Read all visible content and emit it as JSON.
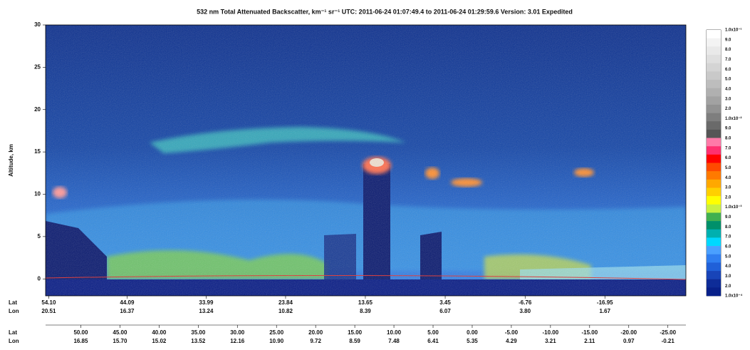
{
  "chart_data": {
    "type": "heatmap",
    "title": "532 nm Total Attenuated Backscatter, km⁻¹ sr⁻¹   UTC:  2011-06-24 01:07:49.4  to  2011-06-24 01:29:59.6   Version: 3.01  Expedited",
    "y_label": "Altitude, km",
    "ylim": [
      -2,
      30
    ],
    "yticks": [
      0,
      5,
      10,
      15,
      20,
      25,
      30
    ],
    "xlim": [
      54.5,
      -27.3
    ],
    "lat_label": "Lat",
    "lon_label": "Lon",
    "xticks": [
      {
        "value": 54.1,
        "label": "54.10"
      },
      {
        "value": 44.09,
        "label": "44.09"
      },
      {
        "value": 33.99,
        "label": "33.99"
      },
      {
        "value": 23.84,
        "label": "23.84"
      },
      {
        "value": 13.65,
        "label": "13.65"
      },
      {
        "value": 3.45,
        "label": "3.45"
      },
      {
        "value": -6.76,
        "label": "-6.76"
      },
      {
        "value": -16.95,
        "label": "-16.95"
      }
    ],
    "lon_labels": [
      "20.51",
      "16.37",
      "13.24",
      "10.82",
      "8.39",
      "6.07",
      "3.80",
      "1.67"
    ],
    "xticks2": [
      {
        "value": 50,
        "label": "50.00"
      },
      {
        "value": 45,
        "label": "45.00"
      },
      {
        "value": 40,
        "label": "40.00"
      },
      {
        "value": 35,
        "label": "35.00"
      },
      {
        "value": 30,
        "label": "30.00"
      },
      {
        "value": 25,
        "label": "25.00"
      },
      {
        "value": 20,
        "label": "20.00"
      },
      {
        "value": 15,
        "label": "15.00"
      },
      {
        "value": 10,
        "label": "10.00"
      },
      {
        "value": 5,
        "label": "5.00"
      },
      {
        "value": 0,
        "label": "0.00"
      },
      {
        "value": -5,
        "label": "-5.00"
      },
      {
        "value": -10,
        "label": "-10.00"
      },
      {
        "value": -15,
        "label": "-15.00"
      },
      {
        "value": -20,
        "label": "-20.00"
      },
      {
        "value": -25,
        "label": "-25.00"
      }
    ],
    "lon_labels2": [
      "16.85",
      "15.70",
      "15.02",
      "13.52",
      "12.16",
      "10.90",
      "9.72",
      "8.59",
      "7.48",
      "6.41",
      "5.35",
      "4.29",
      "3.21",
      "2.11",
      "0.97",
      "-0.21"
    ],
    "colorbar_labels": [
      "1.0x10⁻¹",
      "9.0",
      "8.0",
      "7.0",
      "6.0",
      "5.0",
      "4.0",
      "3.0",
      "2.0",
      "1.0x10⁻²",
      "9.0",
      "8.0",
      "7.0",
      "6.0",
      "5.0",
      "4.0",
      "3.0",
      "2.0",
      "1.0x10⁻³",
      "9.0",
      "8.0",
      "7.0",
      "6.0",
      "5.0",
      "4.0",
      "3.0",
      "2.0",
      "1.0x10⁻⁴"
    ],
    "colorbar_colors": [
      "#ffffff",
      "#f3f3f3",
      "#e9e9e9",
      "#dfdfdf",
      "#d4d4d4",
      "#c9c9c9",
      "#bdbdbd",
      "#b0b0b0",
      "#a2a2a2",
      "#929292",
      "#7e7e7e",
      "#6a6a6a",
      "#565656",
      "#ff7aa8",
      "#ff3070",
      "#ff0000",
      "#ff4a00",
      "#ff7a00",
      "#ffa800",
      "#ffd000",
      "#ffff00",
      "#c8f040",
      "#40b050",
      "#00906a",
      "#00b0b0",
      "#00d8ff",
      "#4aa0ff",
      "#2f7ef0",
      "#2060d8",
      "#1844b8",
      "#0e2c98",
      "#08208a"
    ]
  }
}
